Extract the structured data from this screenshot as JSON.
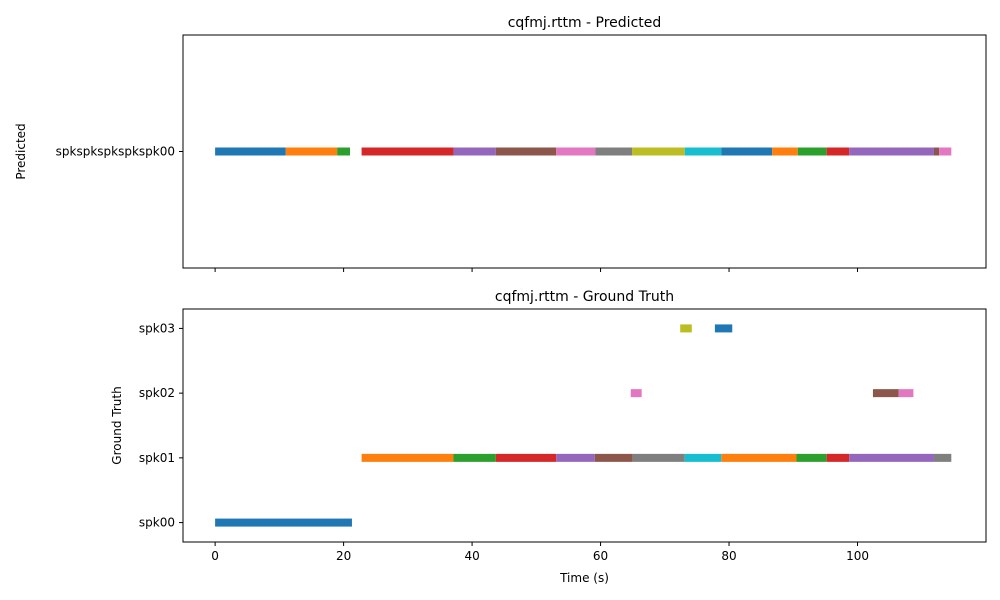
{
  "chart_data": [
    {
      "type": "timeline",
      "title": "cqfmj.rttm - Predicted",
      "ylabel": "Predicted",
      "xlabel": "",
      "xlim": [
        -5,
        120
      ],
      "xticks": [
        0,
        20,
        40,
        60,
        80,
        100
      ],
      "show_xtick_labels": false,
      "rows": [
        "spkspkspkspkspk00"
      ],
      "segments": [
        {
          "row": 0,
          "start": 0,
          "end": 11,
          "color": "#1f77b4"
        },
        {
          "row": 0,
          "start": 11,
          "end": 19,
          "color": "#ff7f0e"
        },
        {
          "row": 0,
          "start": 19,
          "end": 21,
          "color": "#2ca02c"
        },
        {
          "row": 0,
          "start": 22.8,
          "end": 37.1,
          "color": "#d62728"
        },
        {
          "row": 0,
          "start": 37.1,
          "end": 43.7,
          "color": "#9467bd"
        },
        {
          "row": 0,
          "start": 43.7,
          "end": 53.1,
          "color": "#8c564b"
        },
        {
          "row": 0,
          "start": 53.1,
          "end": 59.2,
          "color": "#e377c2"
        },
        {
          "row": 0,
          "start": 59.2,
          "end": 64.9,
          "color": "#7f7f7f"
        },
        {
          "row": 0,
          "start": 64.9,
          "end": 73.1,
          "color": "#bcbd22"
        },
        {
          "row": 0,
          "start": 73.1,
          "end": 78.8,
          "color": "#17becf"
        },
        {
          "row": 0,
          "start": 78.8,
          "end": 86.7,
          "color": "#1f77b4"
        },
        {
          "row": 0,
          "start": 86.7,
          "end": 90.7,
          "color": "#ff7f0e"
        },
        {
          "row": 0,
          "start": 90.7,
          "end": 95.2,
          "color": "#2ca02c"
        },
        {
          "row": 0,
          "start": 95.2,
          "end": 98.7,
          "color": "#d62728"
        },
        {
          "row": 0,
          "start": 98.7,
          "end": 111.9,
          "color": "#9467bd"
        },
        {
          "row": 0,
          "start": 111.9,
          "end": 112.7,
          "color": "#8c564b"
        },
        {
          "row": 0,
          "start": 112.7,
          "end": 114.6,
          "color": "#e377c2"
        }
      ]
    },
    {
      "type": "timeline",
      "title": "cqfmj.rttm - Ground Truth",
      "ylabel": "Ground Truth",
      "xlabel": "Time (s)",
      "xlim": [
        -5,
        120
      ],
      "xticks": [
        0,
        20,
        40,
        60,
        80,
        100
      ],
      "show_xtick_labels": true,
      "rows": [
        "spk00",
        "spk01",
        "spk02",
        "spk03"
      ],
      "segments": [
        {
          "row": 0,
          "start": 0,
          "end": 21.3,
          "color": "#1f77b4"
        },
        {
          "row": 1,
          "start": 22.8,
          "end": 37.1,
          "color": "#ff7f0e"
        },
        {
          "row": 1,
          "start": 37.1,
          "end": 43.7,
          "color": "#2ca02c"
        },
        {
          "row": 1,
          "start": 43.7,
          "end": 53.1,
          "color": "#d62728"
        },
        {
          "row": 1,
          "start": 53.1,
          "end": 59.1,
          "color": "#9467bd"
        },
        {
          "row": 1,
          "start": 59.1,
          "end": 65.0,
          "color": "#8c564b"
        },
        {
          "row": 1,
          "start": 65.0,
          "end": 73.1,
          "color": "#7f7f7f"
        },
        {
          "row": 1,
          "start": 73.1,
          "end": 78.8,
          "color": "#17becf"
        },
        {
          "row": 1,
          "start": 78.8,
          "end": 90.5,
          "color": "#ff7f0e"
        },
        {
          "row": 1,
          "start": 90.5,
          "end": 95.2,
          "color": "#2ca02c"
        },
        {
          "row": 1,
          "start": 95.2,
          "end": 98.7,
          "color": "#d62728"
        },
        {
          "row": 1,
          "start": 98.7,
          "end": 111.9,
          "color": "#9467bd"
        },
        {
          "row": 1,
          "start": 111.9,
          "end": 114.6,
          "color": "#7f7f7f"
        },
        {
          "row": 2,
          "start": 64.7,
          "end": 66.4,
          "color": "#e377c2"
        },
        {
          "row": 2,
          "start": 102.4,
          "end": 106.4,
          "color": "#8c564b"
        },
        {
          "row": 2,
          "start": 106.4,
          "end": 108.7,
          "color": "#e377c2"
        },
        {
          "row": 3,
          "start": 72.4,
          "end": 74.2,
          "color": "#bcbd22"
        },
        {
          "row": 3,
          "start": 77.8,
          "end": 80.5,
          "color": "#1f77b4"
        }
      ]
    }
  ]
}
